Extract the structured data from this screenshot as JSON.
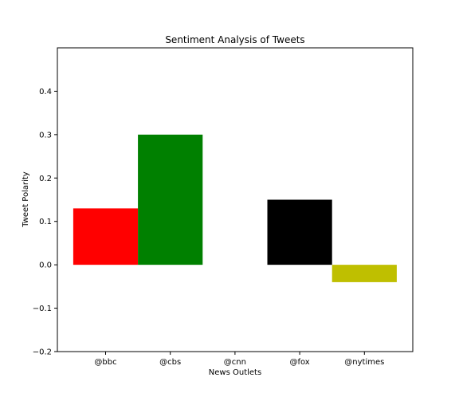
{
  "chart_data": {
    "type": "bar",
    "title": "Sentiment Analysis of Tweets",
    "xlabel": "News Outlets",
    "ylabel": "Tweet Polarity",
    "categories": [
      "@bbc",
      "@cbs",
      "@cnn",
      "@fox",
      "@nytimes"
    ],
    "values": [
      0.13,
      0.3,
      0.0,
      0.15,
      -0.04
    ],
    "colors": [
      "#ff0000",
      "#008000",
      "#0000ff",
      "#000000",
      "#bfbf00"
    ],
    "ylim": [
      -0.2,
      0.5
    ],
    "yticks": [
      -0.2,
      -0.1,
      0.0,
      0.1,
      0.2,
      0.3,
      0.4
    ],
    "ytick_labels": [
      "−0.2",
      "−0.1",
      "0.0",
      "0.1",
      "0.2",
      "0.3",
      "0.4"
    ],
    "grid": false,
    "legend": "none"
  }
}
